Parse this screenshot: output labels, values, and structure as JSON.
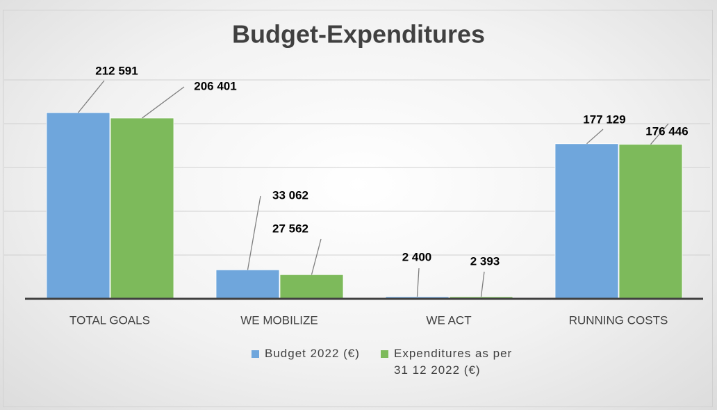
{
  "chart_data": {
    "type": "bar",
    "title": "Budget-Expenditures",
    "categories": [
      "TOTAL GOALS",
      "WE MOBILIZE",
      "WE ACT",
      "RUNNING COSTS"
    ],
    "series": [
      {
        "name": "Budget 2022 (€)",
        "color": "#6fa6dc",
        "values": [
          212591,
          33062,
          2400,
          177129
        ],
        "value_labels": [
          "212 591",
          "33 062",
          "2 400",
          "177 129"
        ]
      },
      {
        "name": "Expenditures as per 31 12 2022 (€)",
        "color": "#7dba5b",
        "values": [
          206401,
          27562,
          2393,
          176446
        ],
        "value_labels": [
          "206 401",
          "27 562",
          "2 393",
          "176 446"
        ]
      }
    ],
    "ylim": [
      0,
      250000
    ],
    "yticks": [
      0,
      50000,
      100000,
      150000,
      200000,
      250000
    ],
    "grid": true,
    "legend": "bottom"
  }
}
